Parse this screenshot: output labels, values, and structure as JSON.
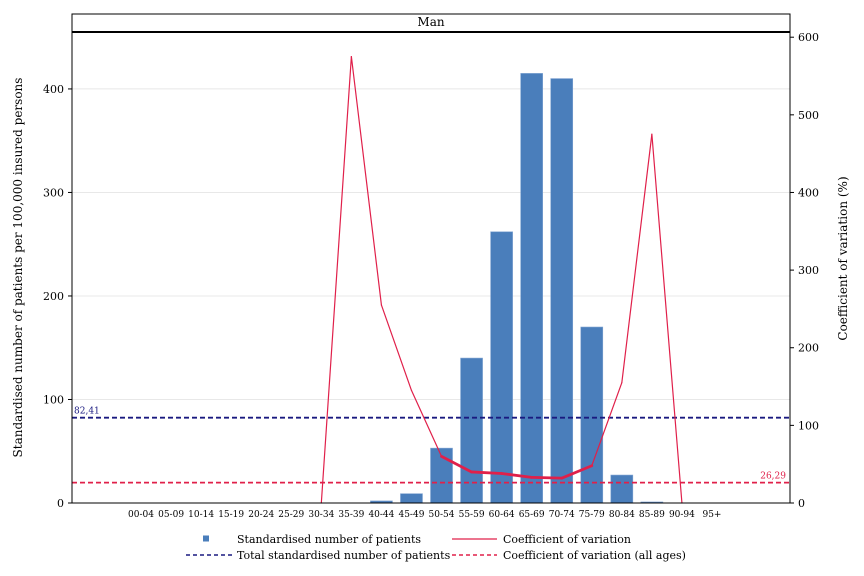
{
  "chart_data": {
    "type": "bar",
    "panel_title": "Man",
    "categories": [
      "00-04",
      "05-09",
      "10-14",
      "15-19",
      "20-24",
      "25-29",
      "30-34",
      "35-39",
      "40-44",
      "45-49",
      "50-54",
      "55-59",
      "60-64",
      "65-69",
      "70-74",
      "75-79",
      "80-84",
      "85-89",
      "90-94",
      "95+"
    ],
    "series": [
      {
        "name": "Standardised number of patients",
        "type": "bar",
        "axis": "left",
        "color": "#4a7ebb",
        "values": [
          0,
          0,
          0,
          0,
          0,
          0,
          0,
          0,
          2,
          9,
          53,
          140,
          262,
          415,
          410,
          170,
          27,
          1,
          0,
          0
        ]
      },
      {
        "name": "Coefficient of variation",
        "type": "line",
        "axis": "right",
        "color": "#e0204a",
        "values": [
          null,
          null,
          null,
          null,
          null,
          null,
          0,
          575,
          255,
          145,
          60,
          40,
          38,
          33,
          32,
          48,
          155,
          475,
          0,
          null
        ]
      }
    ],
    "reference_lines": [
      {
        "name": "Total standardised number of patients",
        "axis": "left",
        "value": 82.41,
        "label": "82,41",
        "color": "#1a1a80",
        "style": "dashed"
      },
      {
        "name": "Coefficient of variation (all ages)",
        "axis": "right",
        "value": 26.29,
        "label": "26,29",
        "color": "#e0204a",
        "style": "dashed"
      }
    ],
    "ylabel": "Standardised number of patients per 100,000 insured persons",
    "y2label": "Coefficient of variation (%)",
    "ylim": [
      0,
      455
    ],
    "y2lim": [
      0,
      606.7
    ],
    "yticks": [
      0,
      100,
      200,
      300,
      400
    ],
    "y2ticks": [
      0,
      100,
      200,
      300,
      400,
      500,
      600
    ],
    "grid": true,
    "legend_position": "bottom"
  }
}
